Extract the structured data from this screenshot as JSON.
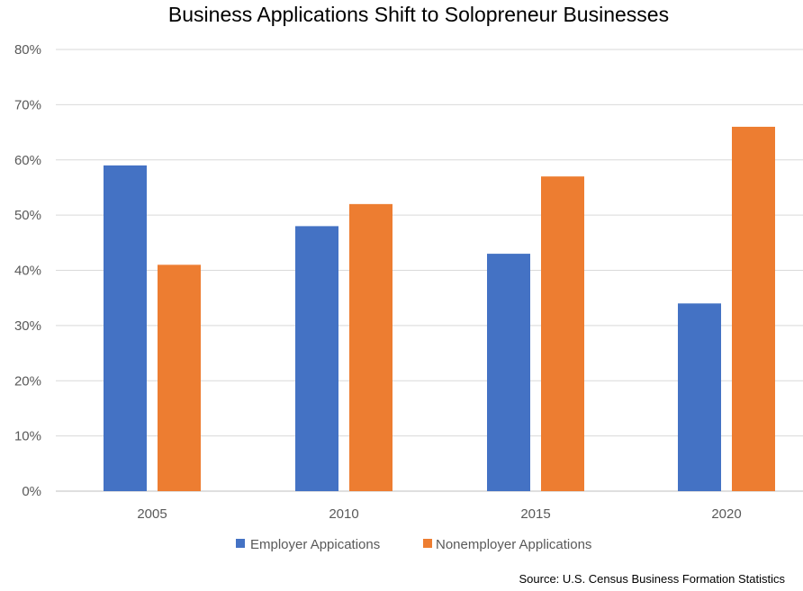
{
  "chart_data": {
    "type": "bar",
    "title": "Business Applications Shift to Solopreneur Businesses",
    "categories": [
      "2005",
      "2010",
      "2015",
      "2020"
    ],
    "series": [
      {
        "name": "Employer Appications",
        "values": [
          59,
          48,
          43,
          34
        ],
        "color": "#4472C4"
      },
      {
        "name": "Nonemployer Applications",
        "values": [
          41,
          52,
          57,
          66
        ],
        "color": "#ED7D31"
      }
    ],
    "y_ticks": [
      "0%",
      "10%",
      "20%",
      "30%",
      "40%",
      "50%",
      "60%",
      "70%",
      "80%"
    ],
    "ylim": [
      0,
      80
    ],
    "y_unit": "%",
    "grid": true,
    "legend_position": "bottom",
    "xlabel": "",
    "ylabel": "",
    "source": "Source:  U.S. Census Business Formation Statistics"
  }
}
